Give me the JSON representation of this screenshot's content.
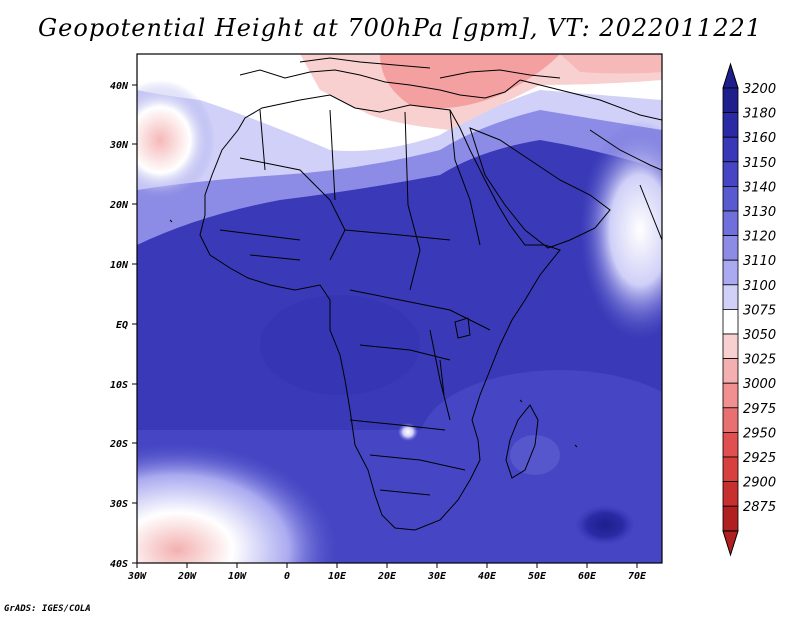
{
  "title": "Geopotential Height at 700hPa [gpm], VT: 2022011221",
  "credit": "GrADS: IGES/COLA",
  "map": {
    "lon_labels": [
      "30W",
      "20W",
      "10W",
      "0",
      "10E",
      "20E",
      "30E",
      "40E",
      "50E",
      "60E",
      "70E"
    ],
    "lat_labels": [
      "40N",
      "30N",
      "20N",
      "10N",
      "EQ",
      "10S",
      "20S",
      "30S",
      "40S"
    ]
  },
  "colorbar": {
    "levels": [
      "3200",
      "3180",
      "3160",
      "3150",
      "3140",
      "3130",
      "3120",
      "3110",
      "3100",
      "3075",
      "3050",
      "3025",
      "3000",
      "2975",
      "2950",
      "2925",
      "2900",
      "2875"
    ],
    "colors": [
      "#1e1e8c",
      "#2a2aa6",
      "#3838b8",
      "#4646c4",
      "#5a5ad0",
      "#7070dc",
      "#8c8ce6",
      "#aaaaf0",
      "#d0d0f8",
      "#ffffff",
      "#f8d0d0",
      "#f4b0b0",
      "#f09090",
      "#e87070",
      "#e05050",
      "#d84040",
      "#c83030",
      "#b02020"
    ],
    "top_color": "#1e1e8c",
    "bottom_color": "#b02020"
  },
  "colors": {
    "dominant": "#3a3ab8",
    "high_pressure_red": "#f4a0a0",
    "transition_white": "#ffffff"
  }
}
